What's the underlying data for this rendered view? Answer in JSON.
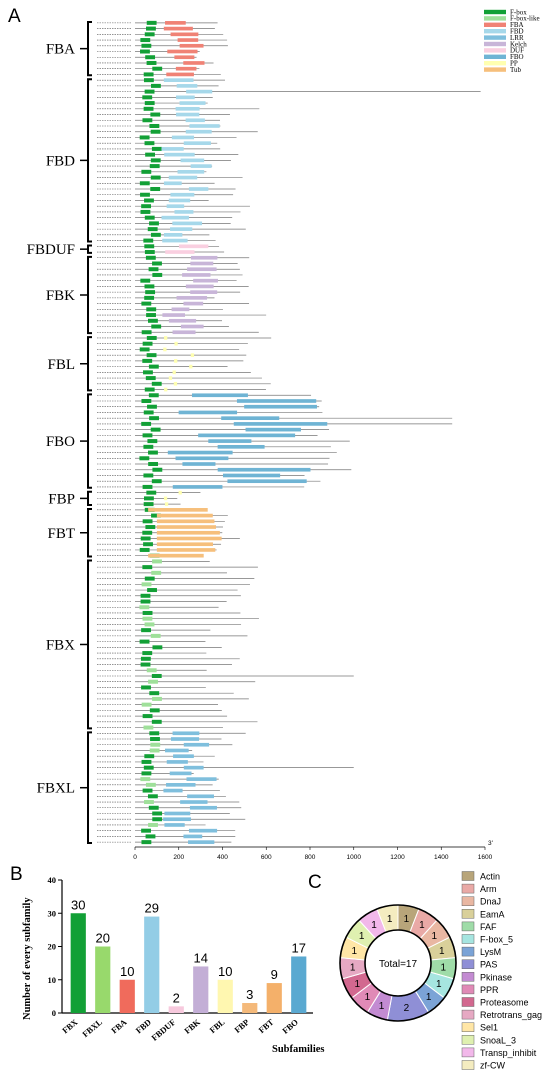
{
  "panel_a": {
    "letter": "A",
    "axis_ticks": [
      "0",
      "200",
      "400",
      "600",
      "800",
      "1000",
      "1200",
      "1400",
      "1600"
    ],
    "end_label": "3'",
    "legend": [
      {
        "name": "F-box",
        "color": "#12a036"
      },
      {
        "name": "F-box-like",
        "color": "#9fe09a"
      },
      {
        "name": "FBA",
        "color": "#f08275"
      },
      {
        "name": "FBD",
        "color": "#a6d8ea"
      },
      {
        "name": "LRR",
        "color": "#7fbfdd"
      },
      {
        "name": "Kelch",
        "color": "#c8b5d8"
      },
      {
        "name": "DUF",
        "color": "#f9cfe0"
      },
      {
        "name": "FBO",
        "color": "#6fb4d4"
      },
      {
        "name": "PP",
        "color": "#ffffb0"
      },
      {
        "name": "Tub",
        "color": "#f6bf7c"
      }
    ],
    "families": [
      {
        "name": "FBA",
        "count": 10,
        "type": "FBA",
        "len": 380
      },
      {
        "name": "FBD",
        "count": 29,
        "type": "FBD",
        "len": 450
      },
      {
        "name": "FBDUF",
        "count": 2,
        "type": "DUF",
        "len": 400
      },
      {
        "name": "FBK",
        "count": 14,
        "type": "Kelch",
        "len": 480
      },
      {
        "name": "FBL",
        "count": 10,
        "type": "PP",
        "len": 520
      },
      {
        "name": "FBO",
        "count": 17,
        "type": "FBO",
        "len": 900
      },
      {
        "name": "FBP",
        "count": 3,
        "type": "PP",
        "len": 300
      },
      {
        "name": "FBT",
        "count": 9,
        "type": "Tub",
        "len": 420
      },
      {
        "name": "FBX",
        "count": 30,
        "type": "none",
        "len": 450
      },
      {
        "name": "FBXL",
        "count": 20,
        "type": "LRR",
        "len": 380
      }
    ]
  },
  "panel_b": {
    "letter": "B",
    "ylabel": "Number of every subfamily",
    "xlabel": "Subfamilies"
  },
  "panel_c": {
    "letter": "C",
    "center_label": "Total=17"
  },
  "chart_data": [
    {
      "type": "bar",
      "categories": [
        "FBX",
        "FBXL",
        "FBA",
        "FBD",
        "FBDUF",
        "FBK",
        "FBL",
        "FBP",
        "FBT",
        "FBO"
      ],
      "values": [
        30,
        20,
        10,
        29,
        2,
        14,
        10,
        3,
        9,
        17
      ],
      "colors": [
        "#12a036",
        "#98d96c",
        "#f06b5c",
        "#93cde6",
        "#f7c9dd",
        "#c3aed6",
        "#fff7b0",
        "#f4b97a",
        "#f4b06a",
        "#5aa9d1"
      ],
      "title": "",
      "xlabel": "Subfamilies",
      "ylabel": "Number of every subfamily",
      "ylim": [
        0,
        40
      ],
      "yticks": [
        0,
        10,
        20,
        30,
        40
      ]
    },
    {
      "type": "pie",
      "categories": [
        "Actin",
        "Arm",
        "DnaJ",
        "EamA",
        "FAF",
        "F-box_5",
        "LysM",
        "PAS",
        "Pkinase",
        "PPR",
        "Proteasome",
        "Retrotrans_gag",
        "Sel1",
        "SnoaL_3",
        "Transp_inhibit",
        "zf-CW"
      ],
      "values": [
        1,
        1,
        1,
        1,
        1,
        1,
        1,
        2,
        1,
        1,
        1,
        1,
        1,
        1,
        1,
        1
      ],
      "colors": [
        "#b8a57a",
        "#e9a9a6",
        "#e9b7a2",
        "#d9d09a",
        "#9fdca8",
        "#a6e5e0",
        "#7ba3d6",
        "#8f8fd6",
        "#c38bd2",
        "#e08ab6",
        "#d2688f",
        "#e6a9c3",
        "#ffe6a6",
        "#dff0b0",
        "#f2b8ea",
        "#f4ecc0"
      ],
      "center_label": "Total=17"
    }
  ]
}
